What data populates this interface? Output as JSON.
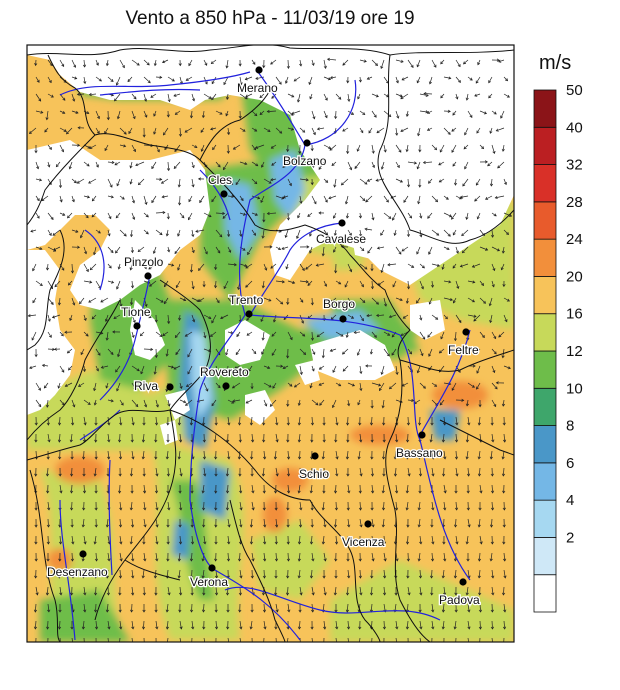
{
  "title": "Vento a 850 hPa - 11/03/19 ore 19",
  "legend": {
    "unit": "m/s",
    "levels": [
      {
        "label": "",
        "color": "#ffffff"
      },
      {
        "label": "2",
        "color": "#cfe8f7"
      },
      {
        "label": "4",
        "color": "#a6d8f1"
      },
      {
        "label": "6",
        "color": "#74b7e6"
      },
      {
        "label": "8",
        "color": "#4a97c8"
      },
      {
        "label": "10",
        "color": "#3ea66b"
      },
      {
        "label": "12",
        "color": "#6ebd4a"
      },
      {
        "label": "16",
        "color": "#c7d95a"
      },
      {
        "label": "20",
        "color": "#f7c35a"
      },
      {
        "label": "24",
        "color": "#f28f3b"
      },
      {
        "label": "28",
        "color": "#e85b2c"
      },
      {
        "label": "32",
        "color": "#d93028"
      },
      {
        "label": "40",
        "color": "#bb1f22"
      },
      {
        "label": "50",
        "color": "#8b1418"
      }
    ]
  },
  "cities": [
    {
      "name": "Merano"
    },
    {
      "name": "Bolzano"
    },
    {
      "name": "Cles"
    },
    {
      "name": "Cavalese"
    },
    {
      "name": "Pinzolo"
    },
    {
      "name": "Tione"
    },
    {
      "name": "Trento"
    },
    {
      "name": "Borgo"
    },
    {
      "name": "Feltre"
    },
    {
      "name": "Riva"
    },
    {
      "name": "Rovereto"
    },
    {
      "name": "Bassano"
    },
    {
      "name": "Schio"
    },
    {
      "name": "Vicenza"
    },
    {
      "name": "Desenzano"
    },
    {
      "name": "Verona"
    },
    {
      "name": "Padova"
    }
  ]
}
